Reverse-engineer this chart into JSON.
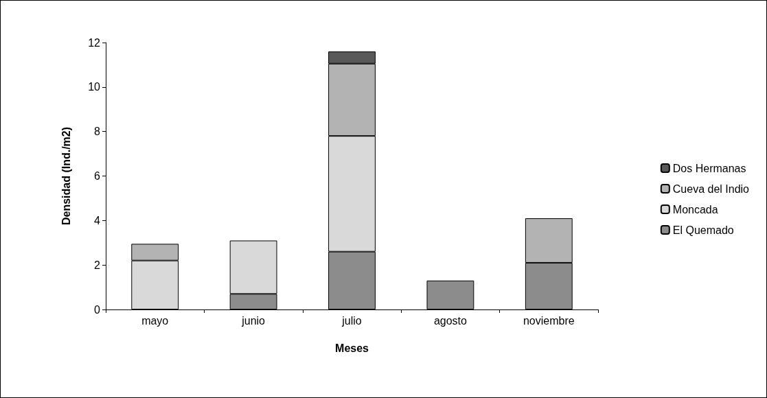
{
  "chart_data": {
    "type": "bar",
    "stacked": true,
    "xlabel": "Meses",
    "ylabel": "Densidad (Ind./m2)",
    "categories": [
      "mayo",
      "junio",
      "julio",
      "agosto",
      "noviembre"
    ],
    "series": [
      {
        "name": "El Quemado",
        "color": "#8c8c8c",
        "values": [
          null,
          0.7,
          2.6,
          1.3,
          2.1
        ]
      },
      {
        "name": "Moncada",
        "color": "#d9d9d9",
        "values": [
          2.2,
          2.4,
          5.2,
          null,
          null
        ]
      },
      {
        "name": "Cueva del Indio",
        "color": "#b3b3b3",
        "values": [
          0.75,
          null,
          3.25,
          null,
          2.0
        ]
      },
      {
        "name": "Dos Hermanas",
        "color": "#595959",
        "values": [
          null,
          null,
          0.55,
          null,
          null
        ]
      }
    ],
    "ylim": [
      0,
      12
    ],
    "yticks": [
      0,
      2,
      4,
      6,
      8,
      10,
      12
    ],
    "grid": false,
    "legend": "right"
  }
}
